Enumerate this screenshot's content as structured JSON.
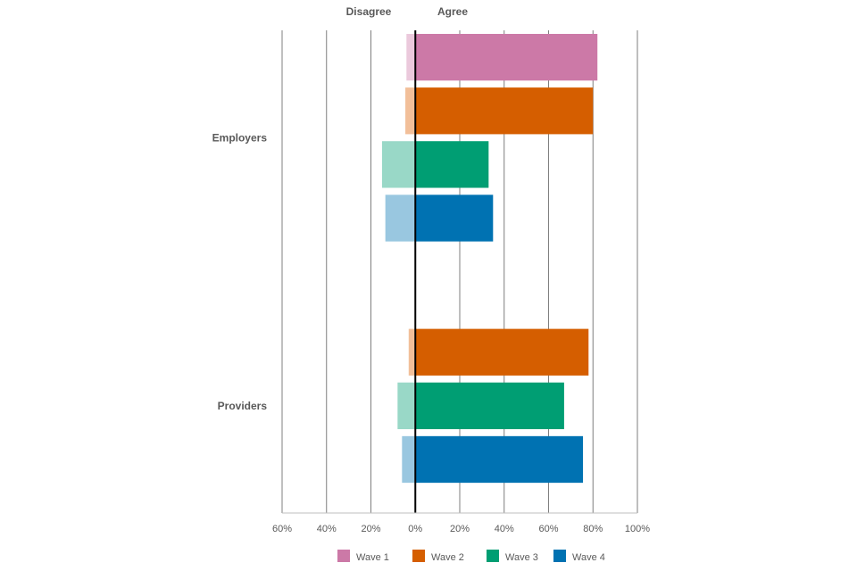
{
  "chart_data": {
    "type": "bar",
    "orientation": "horizontal-diverging",
    "header_left": "Disagree",
    "header_right": "Agree",
    "xlim": [
      -60,
      100
    ],
    "xticks": [
      "60%",
      "40%",
      "20%",
      "0%",
      "20%",
      "40%",
      "60%",
      "80%",
      "100%"
    ],
    "xtick_values": [
      -60,
      -40,
      -20,
      0,
      20,
      40,
      60,
      80,
      100
    ],
    "categories": [
      "Employers",
      "Providers"
    ],
    "series": [
      {
        "name": "Wave 1",
        "color": "#CC79A7",
        "light_color": "#EBC9DC",
        "agree": [
          82,
          null
        ],
        "disagree": [
          4,
          null
        ]
      },
      {
        "name": "Wave 2",
        "color": "#D55E00",
        "light_color": "#F2BF99",
        "agree": [
          80,
          78
        ],
        "disagree": [
          4.5,
          3
        ]
      },
      {
        "name": "Wave 3",
        "color": "#009E73",
        "light_color": "#99D8C7",
        "agree": [
          33,
          67
        ],
        "disagree": [
          15,
          8
        ]
      },
      {
        "name": "Wave 4",
        "color": "#0072B2",
        "light_color": "#99C7E0",
        "agree": [
          35,
          75.5
        ],
        "disagree": [
          13.5,
          6
        ]
      }
    ]
  }
}
